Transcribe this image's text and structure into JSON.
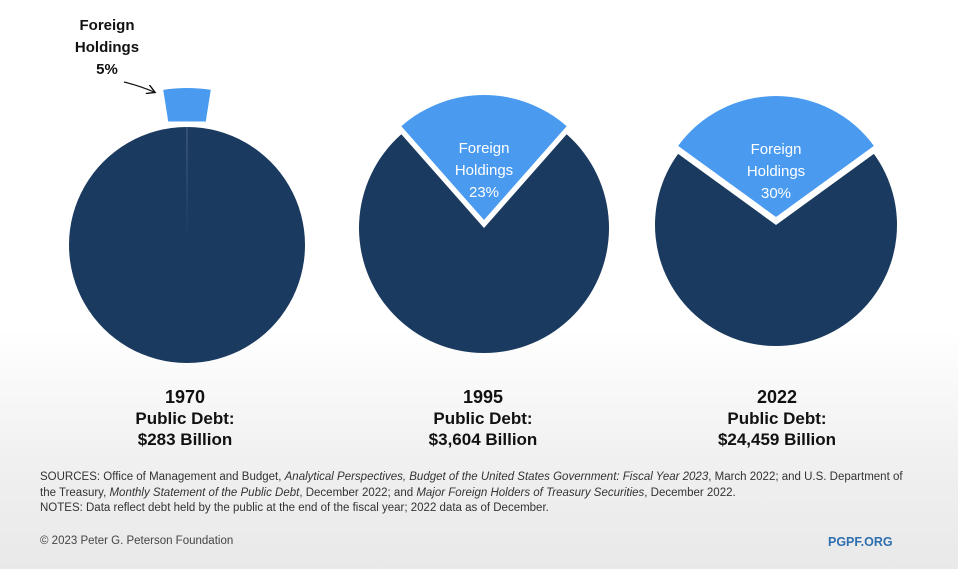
{
  "chart_data": {
    "type": "pie",
    "colors": {
      "domestic": "#1a3a5f",
      "foreign": "#4a9bf0",
      "foreign_label_text": "#ffffff",
      "outside_label_text": "#111111"
    },
    "pies": [
      {
        "year": "1970",
        "debt_label": "Public Debt:",
        "debt_value": "$283 Billion",
        "foreign_share": 5,
        "foreign_exploded": true,
        "foreign_label_line1": "Foreign",
        "foreign_label_line2": "Holdings",
        "foreign_label_pct": "5%"
      },
      {
        "year": "1995",
        "debt_label": "Public Debt:",
        "debt_value": "$3,604 Billion",
        "foreign_share": 23,
        "foreign_exploded": true,
        "foreign_label_line1": "Foreign",
        "foreign_label_line2": "Holdings",
        "foreign_label_pct": "23%"
      },
      {
        "year": "2022",
        "debt_label": "Public Debt:",
        "debt_value": "$24,459 Billion",
        "foreign_share": 30,
        "foreign_exploded": true,
        "foreign_label_line1": "Foreign",
        "foreign_label_line2": "Holdings",
        "foreign_label_pct": "30%"
      }
    ]
  },
  "footer": {
    "sources_prefix": "SOURCES: Office of Management and Budget, ",
    "sources_title1": "Analytical Perspectives, Budget of the United States Government: Fiscal Year 2023",
    "sources_mid1": ", March 2022; and U.S. Department of the Treasury, ",
    "sources_title2": "Monthly Statement of the Public Debt",
    "sources_mid2": ", December 2022; and ",
    "sources_title3": "Major Foreign Holders of Treasury Securities",
    "sources_end": ", December 2022.",
    "notes": "NOTES: Data reflect debt held by the public at the end of the fiscal year; 2022 data as of December.",
    "copyright": "© 2023 Peter G. Peterson Foundation",
    "brand": "PGPF.ORG"
  }
}
